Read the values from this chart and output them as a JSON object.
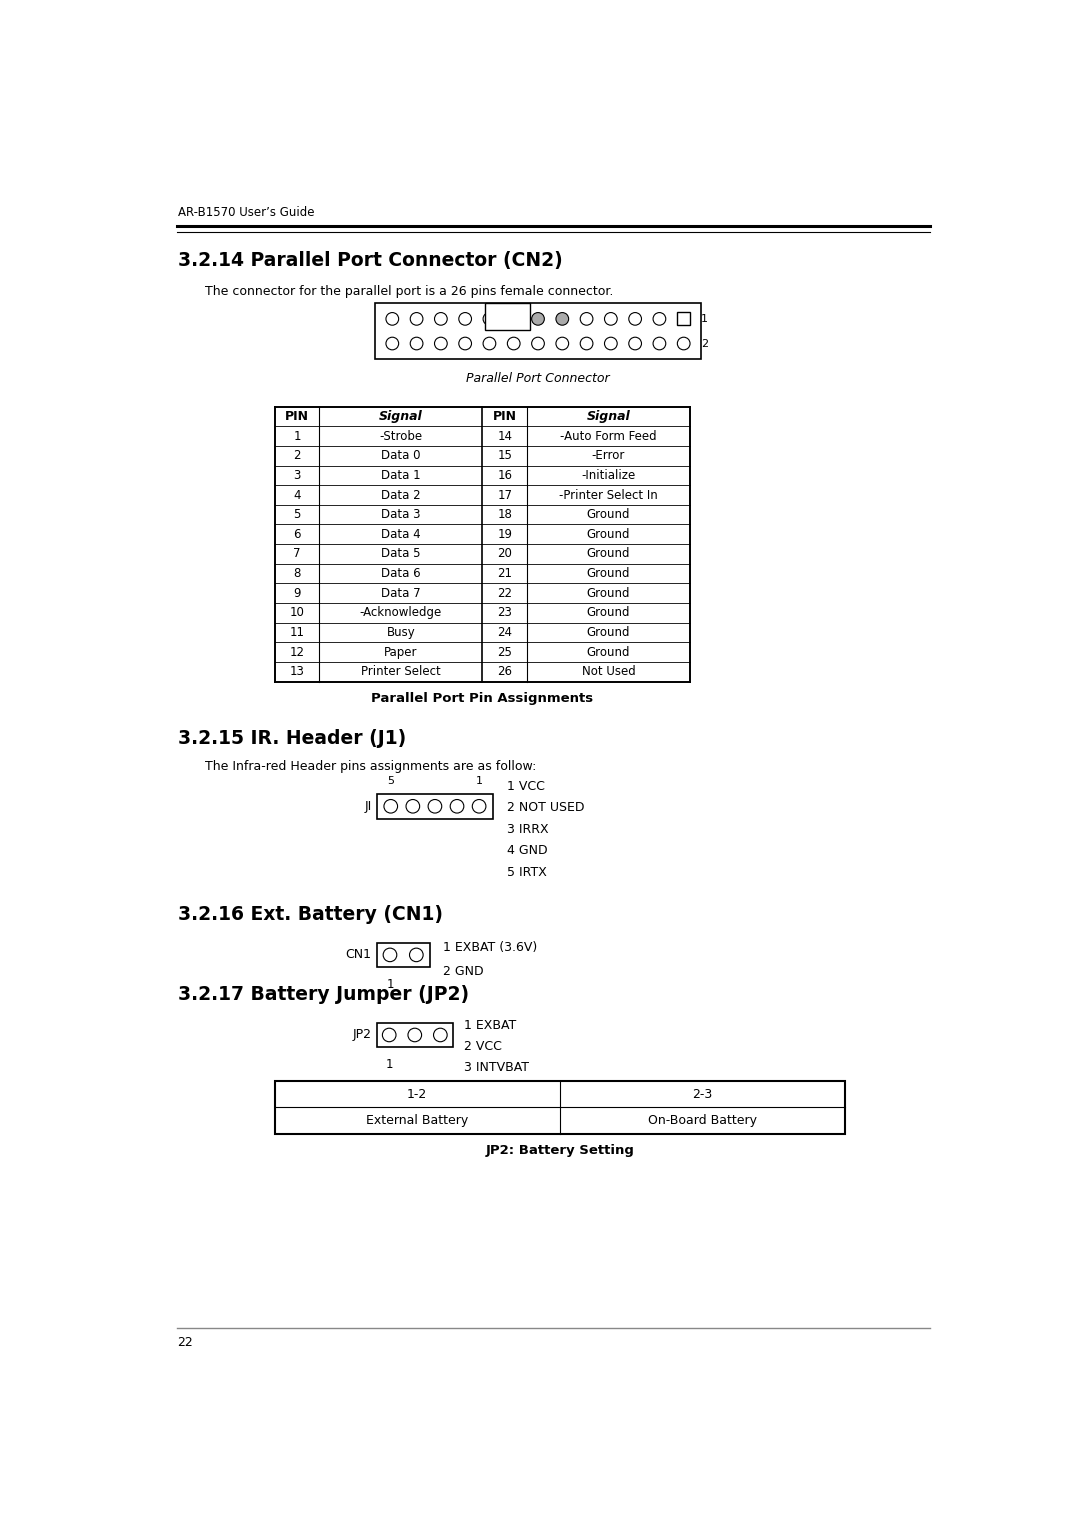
{
  "header_text": "AR-B1570 User’s Guide",
  "page_number": "22",
  "section_3214": {
    "title": "3.2.14 Parallel Port Connector (CN2)",
    "description": "The connector for the parallel port is a 26 pins female connector.",
    "connector_label": "Parallel Port Connector",
    "table_caption": "Parallel Port Pin Assignments",
    "pins": [
      [
        1,
        "-Strobe",
        14,
        "-Auto Form Feed"
      ],
      [
        2,
        "Data 0",
        15,
        "-Error"
      ],
      [
        3,
        "Data 1",
        16,
        "-Initialize"
      ],
      [
        4,
        "Data 2",
        17,
        "-Printer Select In"
      ],
      [
        5,
        "Data 3",
        18,
        "Ground"
      ],
      [
        6,
        "Data 4",
        19,
        "Ground"
      ],
      [
        7,
        "Data 5",
        20,
        "Ground"
      ],
      [
        8,
        "Data 6",
        21,
        "Ground"
      ],
      [
        9,
        "Data 7",
        22,
        "Ground"
      ],
      [
        10,
        "-Acknowledge",
        23,
        "Ground"
      ],
      [
        11,
        "Busy",
        24,
        "Ground"
      ],
      [
        12,
        "Paper",
        25,
        "Ground"
      ],
      [
        13,
        "Printer Select",
        26,
        "Not Used"
      ]
    ]
  },
  "section_3215": {
    "title": "3.2.15 IR. Header (J1)",
    "description": "The Infra-red Header pins assignments are as follow:",
    "connector_label": "JI",
    "pin_signals": [
      "1 VCC",
      "2 NOT USED",
      "3 IRRX",
      "4 GND",
      "5 IRTX"
    ]
  },
  "section_3216": {
    "title": "3.2.16 Ext. Battery (CN1)",
    "connector_label": "CN1",
    "pin_signals": [
      "1 EXBAT (3.6V)",
      "2 GND"
    ]
  },
  "section_3217": {
    "title": "3.2.17 Battery Jumper (JP2)",
    "connector_label": "JP2",
    "pin_signals": [
      "1 EXBAT",
      "2 VCC",
      "3 INTVBAT"
    ],
    "table_caption": "JP2: Battery Setting",
    "table_headers": [
      "1-2",
      "2-3"
    ],
    "table_row": [
      "External Battery",
      "On-Board Battery"
    ]
  },
  "bg_color": "#ffffff",
  "text_color": "#000000"
}
